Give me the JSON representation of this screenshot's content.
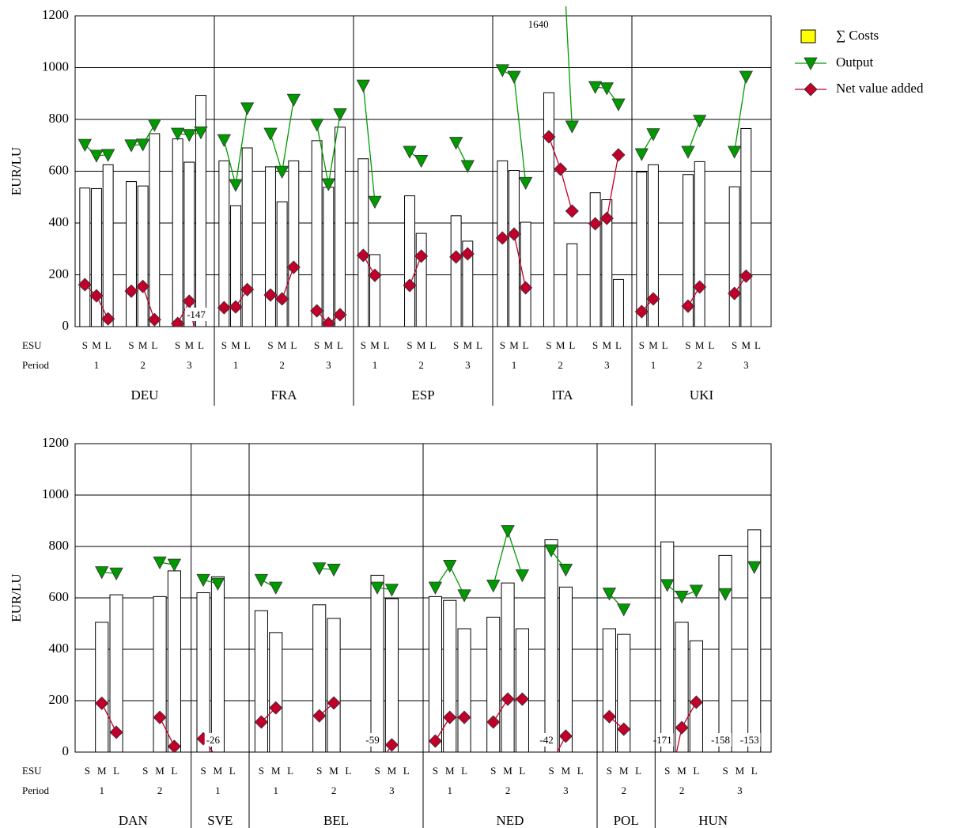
{
  "chart_data": [
    {
      "type": "bar",
      "y_label": "EUR/LU",
      "ylim": [
        0,
        1200
      ],
      "yticks": [
        0,
        200,
        400,
        600,
        800,
        1000,
        1200
      ],
      "grid": true,
      "row_labels": [
        "ESU",
        "Period"
      ],
      "legend": "right",
      "series": [
        {
          "name": "∑ Costs",
          "color": "#ffff00",
          "bar_fill": "#ffffff"
        },
        {
          "name": "Output",
          "color": "#009a00"
        },
        {
          "name": "Net value added",
          "color": "#c0002a"
        }
      ],
      "groups": [
        {
          "country": "DEU",
          "periods": [
            {
              "period": "1",
              "categories": [
                "S",
                "M",
                "L"
              ],
              "costs": [
                535,
                533,
                625
              ],
              "output": [
                702,
                660,
                663
              ],
              "nva": [
                162,
                119,
                30
              ]
            },
            {
              "period": "2",
              "categories": [
                "S",
                "M",
                "L"
              ],
              "costs": [
                560,
                543,
                745
              ],
              "output": [
                700,
                703,
                779
              ],
              "nva": [
                137,
                155,
                27
              ]
            },
            {
              "period": "3",
              "categories": [
                "S",
                "M",
                "L"
              ],
              "costs": [
                725,
                635,
                893
              ],
              "output": [
                745,
                740,
                750
              ],
              "nva": [
                12,
                98,
                -147
              ]
            }
          ]
        },
        {
          "country": "FRA",
          "periods": [
            {
              "period": "1",
              "categories": [
                "S",
                "M",
                "L"
              ],
              "costs": [
                640,
                467,
                690
              ],
              "output": [
                720,
                547,
                843
              ],
              "nva": [
                73,
                76,
                143
              ]
            },
            {
              "period": "2",
              "categories": [
                "S",
                "M",
                "L"
              ],
              "costs": [
                617,
                482,
                640
              ],
              "output": [
                745,
                598,
                876
              ],
              "nva": [
                122,
                107,
                229
              ]
            },
            {
              "period": "3",
              "categories": [
                "S",
                "M",
                "L"
              ],
              "costs": [
                718,
                538,
                770
              ],
              "output": [
                780,
                550,
                820
              ],
              "nva": [
                61,
                12,
                46
              ]
            }
          ]
        },
        {
          "country": "ESP",
          "periods": [
            {
              "period": "1",
              "categories": [
                "S",
                "M",
                "L"
              ],
              "costs": [
                648,
                278,
                null
              ],
              "output": [
                931,
                482,
                null
              ],
              "nva": [
                275,
                198,
                null
              ]
            },
            {
              "period": "2",
              "categories": [
                "S",
                "M",
                "L"
              ],
              "costs": [
                505,
                360,
                null
              ],
              "output": [
                675,
                640,
                null
              ],
              "nva": [
                159,
                272,
                null
              ]
            },
            {
              "period": "3",
              "categories": [
                "S",
                "M",
                "L"
              ],
              "costs": [
                428,
                330,
                null
              ],
              "output": [
                710,
                620,
                null
              ],
              "nva": [
                269,
                281,
                null
              ]
            }
          ]
        },
        {
          "country": "ITA",
          "periods": [
            {
              "period": "1",
              "categories": [
                "S",
                "M",
                "L"
              ],
              "costs": [
                640,
                603,
                403
              ],
              "output": [
                990,
                965,
                555
              ],
              "nva": [
                342,
                357,
                150
              ]
            },
            {
              "period": "2",
              "categories": [
                "S",
                "M",
                "L"
              ],
              "costs": [
                903,
                null,
                320
              ],
              "output": [
                null,
                1640,
                773
              ],
              "nva": [
                733,
                608,
                446
              ]
            },
            {
              "period": "3",
              "categories": [
                "S",
                "M",
                "L"
              ],
              "costs": [
                517,
                490,
                182
              ],
              "output": [
                925,
                920,
                858
              ],
              "nva": [
                397,
                418,
                663
              ]
            }
          ]
        },
        {
          "country": "UKI",
          "periods": [
            {
              "period": "1",
              "categories": [
                "S",
                "M",
                "L"
              ],
              "costs": [
                597,
                625,
                null
              ],
              "output": [
                666,
                743,
                null
              ],
              "nva": [
                58,
                107,
                null
              ]
            },
            {
              "period": "2",
              "categories": [
                "S",
                "M",
                "L"
              ],
              "costs": [
                587,
                637,
                null
              ],
              "output": [
                675,
                795,
                null
              ],
              "nva": [
                79,
                153,
                null
              ]
            },
            {
              "period": "3",
              "categories": [
                "S",
                "M",
                "L"
              ],
              "costs": [
                540,
                765,
                null
              ],
              "output": [
                675,
                965,
                null
              ],
              "nva": [
                128,
                195,
                null
              ]
            }
          ]
        }
      ]
    },
    {
      "type": "bar",
      "y_label": "EUR/LU",
      "ylim": [
        0,
        1200
      ],
      "yticks": [
        0,
        200,
        400,
        600,
        800,
        1000,
        1200
      ],
      "grid": true,
      "row_labels": [
        "ESU",
        "Period"
      ],
      "groups": [
        {
          "country": "DAN",
          "periods": [
            {
              "period": "1",
              "categories": [
                "S",
                "M",
                "L"
              ],
              "costs": [
                null,
                505,
                612
              ],
              "output": [
                null,
                700,
                695
              ],
              "nva": [
                null,
                190,
                77
              ]
            },
            {
              "period": "2",
              "categories": [
                "S",
                "M",
                "L"
              ],
              "costs": [
                null,
                605,
                705
              ],
              "output": [
                null,
                738,
                729
              ],
              "nva": [
                null,
                135,
                22
              ]
            }
          ]
        },
        {
          "country": "SVE",
          "periods": [
            {
              "period": "1",
              "categories": [
                "S",
                "M",
                "L"
              ],
              "costs": [
                620,
                682,
                null
              ],
              "output": [
                670,
                655,
                null
              ],
              "nva": [
                52,
                -26,
                null
              ]
            }
          ]
        },
        {
          "country": "BEL",
          "periods": [
            {
              "period": "1",
              "categories": [
                "S",
                "M",
                "L"
              ],
              "costs": [
                550,
                465,
                null
              ],
              "output": [
                670,
                640,
                null
              ],
              "nva": [
                117,
                172,
                null
              ]
            },
            {
              "period": "2",
              "categories": [
                "S",
                "M",
                "L"
              ],
              "costs": [
                573,
                520,
                null
              ],
              "output": [
                715,
                710,
                null
              ],
              "nva": [
                141,
                191,
                null
              ]
            },
            {
              "period": "3",
              "categories": [
                "S",
                "M",
                "L"
              ],
              "costs": [
                688,
                597,
                null
              ],
              "output": [
                640,
                632,
                null
              ],
              "nva": [
                -59,
                28,
                null
              ]
            }
          ]
        },
        {
          "country": "NED",
          "periods": [
            {
              "period": "1",
              "categories": [
                "S",
                "M",
                "L"
              ],
              "costs": [
                605,
                590,
                480
              ],
              "output": [
                640,
                725,
                610
              ],
              "nva": [
                43,
                135,
                135
              ]
            },
            {
              "period": "2",
              "categories": [
                "S",
                "M",
                "L"
              ],
              "costs": [
                525,
                658,
                480
              ],
              "output": [
                648,
                860,
                688
              ],
              "nva": [
                117,
                206,
                206
              ]
            },
            {
              "period": "3",
              "categories": [
                "S",
                "M",
                "L"
              ],
              "costs": [
                826,
                642,
                null
              ],
              "output": [
                785,
                710,
                null
              ],
              "nva": [
                -42,
                62,
                null
              ]
            }
          ]
        },
        {
          "country": "POL",
          "periods": [
            {
              "period": "2",
              "categories": [
                "S",
                "M",
                "L"
              ],
              "costs": [
                480,
                458,
                null
              ],
              "output": [
                617,
                555,
                null
              ],
              "nva": [
                138,
                89,
                null
              ]
            }
          ]
        },
        {
          "country": "HUN",
          "periods": [
            {
              "period": "2",
              "categories": [
                "S",
                "M",
                "L"
              ],
              "costs": [
                818,
                505,
                433
              ],
              "output": [
                650,
                605,
                628
              ],
              "nva": [
                -171,
                95,
                194
              ]
            },
            {
              "period": "3",
              "categories": [
                "S",
                "M",
                "L"
              ],
              "costs": [
                765,
                null,
                865
              ],
              "output": [
                615,
                null,
                720
              ],
              "nva": [
                -158,
                null,
                -153
              ]
            }
          ]
        }
      ]
    }
  ]
}
